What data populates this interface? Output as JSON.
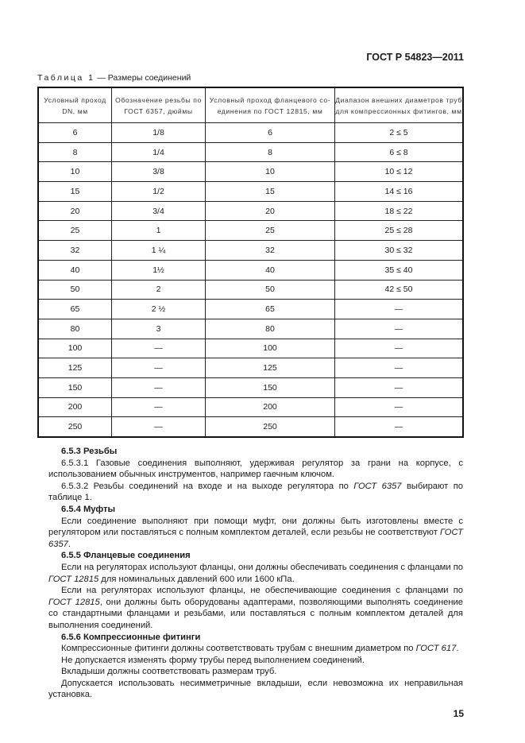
{
  "header": {
    "doc_id": "ГОСТ Р 54823—2011"
  },
  "table": {
    "caption_label": "Таблица 1",
    "caption_title": " — Размеры соединений",
    "headers": [
      [
        "Условный проход",
        "DN, мм"
      ],
      [
        "Обозначение резьбы по",
        "ГОСТ 6357, дюймы"
      ],
      [
        "Условный проход фланцевого со-",
        "единения по ГОСТ 12815, мм"
      ],
      [
        "Диапазон внешних диаметров труб",
        "для компрессионных фитингов, мм"
      ]
    ],
    "rows": [
      [
        "6",
        "1/8",
        "6",
        "2 ≤ 5"
      ],
      [
        "8",
        "1/4",
        "8",
        "6 ≤ 8"
      ],
      [
        "10",
        "3/8",
        "10",
        "10 ≤ 12"
      ],
      [
        "15",
        "1/2",
        "15",
        "14 ≤ 16"
      ],
      [
        "20",
        "3/4",
        "20",
        "18 ≤ 22"
      ],
      [
        "25",
        "1",
        "25",
        "25 ≤ 28"
      ],
      [
        "32",
        "1 ¼",
        "32",
        "30 ≤ 32"
      ],
      [
        "40",
        "1½",
        "40",
        "35 ≤ 40"
      ],
      [
        "50",
        "2",
        "50",
        "42 ≤ 50"
      ],
      [
        "65",
        "2 ½",
        "65",
        "—"
      ],
      [
        "80",
        "3",
        "80",
        "—"
      ],
      [
        "100",
        "—",
        "100",
        "—"
      ],
      [
        "125",
        "—",
        "125",
        "—"
      ],
      [
        "150",
        "—",
        "150",
        "—"
      ],
      [
        "200",
        "—",
        "200",
        "—"
      ],
      [
        "250",
        "—",
        "250",
        "—"
      ]
    ]
  },
  "body": [
    {
      "type": "h",
      "text": "6.5.3 Резьбы"
    },
    {
      "type": "p",
      "parts": [
        {
          "t": "6.5.3.1 Газовые соединения выполняют, удерживая регулятор за грани на корпусе, с использованием обычных инструментов, например гаечным ключом."
        }
      ]
    },
    {
      "type": "p",
      "parts": [
        {
          "t": "6.5.3.2 Резьбы соединений на входе и на выходе регулятора по "
        },
        {
          "t": "ГОСТ 6357",
          "i": true
        },
        {
          "t": " выбирают по таблице 1."
        }
      ]
    },
    {
      "type": "h",
      "text": "6.5.4 Муфты"
    },
    {
      "type": "p",
      "parts": [
        {
          "t": "Если соединение выполняют при помощи муфт, они должны быть изготовлены вместе с регулятором или поставляться с полным комплектом деталей, если резьбы не соответствуют "
        },
        {
          "t": "ГОСТ 6357",
          "i": true
        },
        {
          "t": "."
        }
      ]
    },
    {
      "type": "h",
      "text": "6.5.5 Фланцевые соединения"
    },
    {
      "type": "p",
      "parts": [
        {
          "t": "Если на регуляторах используют фланцы, они должны обеспечивать соединения с фланцами по "
        },
        {
          "t": "ГОСТ 12815",
          "i": true
        },
        {
          "t": " для номинальных давлений 600 или 1600 кПа."
        }
      ]
    },
    {
      "type": "p",
      "parts": [
        {
          "t": "Если на регуляторах используют фланцы, не обеспечивающие соединения с фланцами по "
        },
        {
          "t": "ГОСТ 12815",
          "i": true
        },
        {
          "t": ", они должны быть оборудованы адаптерами, позволяющими выполнять соединение со стандартными фланцами и резьбами, или поставляться с полным комплектом деталей для выполнения соединений."
        }
      ]
    },
    {
      "type": "h",
      "text": "6.5.6 Компрессионные фитинги"
    },
    {
      "type": "p",
      "parts": [
        {
          "t": "Компрессионные фитинги должны соответствовать трубам с внешним диаметром по "
        },
        {
          "t": "ГОСТ 617",
          "i": true
        },
        {
          "t": "."
        }
      ]
    },
    {
      "type": "p",
      "parts": [
        {
          "t": "Не допускается изменять форму трубы перед выполнением соединений."
        }
      ]
    },
    {
      "type": "p",
      "parts": [
        {
          "t": "Вкладыши должны соответствовать размерам труб."
        }
      ]
    },
    {
      "type": "p",
      "parts": [
        {
          "t": "Допускается использовать несимметричные вкладыши, если невозможна их неправильная установка."
        }
      ]
    }
  ],
  "footer": {
    "page_number": "15"
  }
}
